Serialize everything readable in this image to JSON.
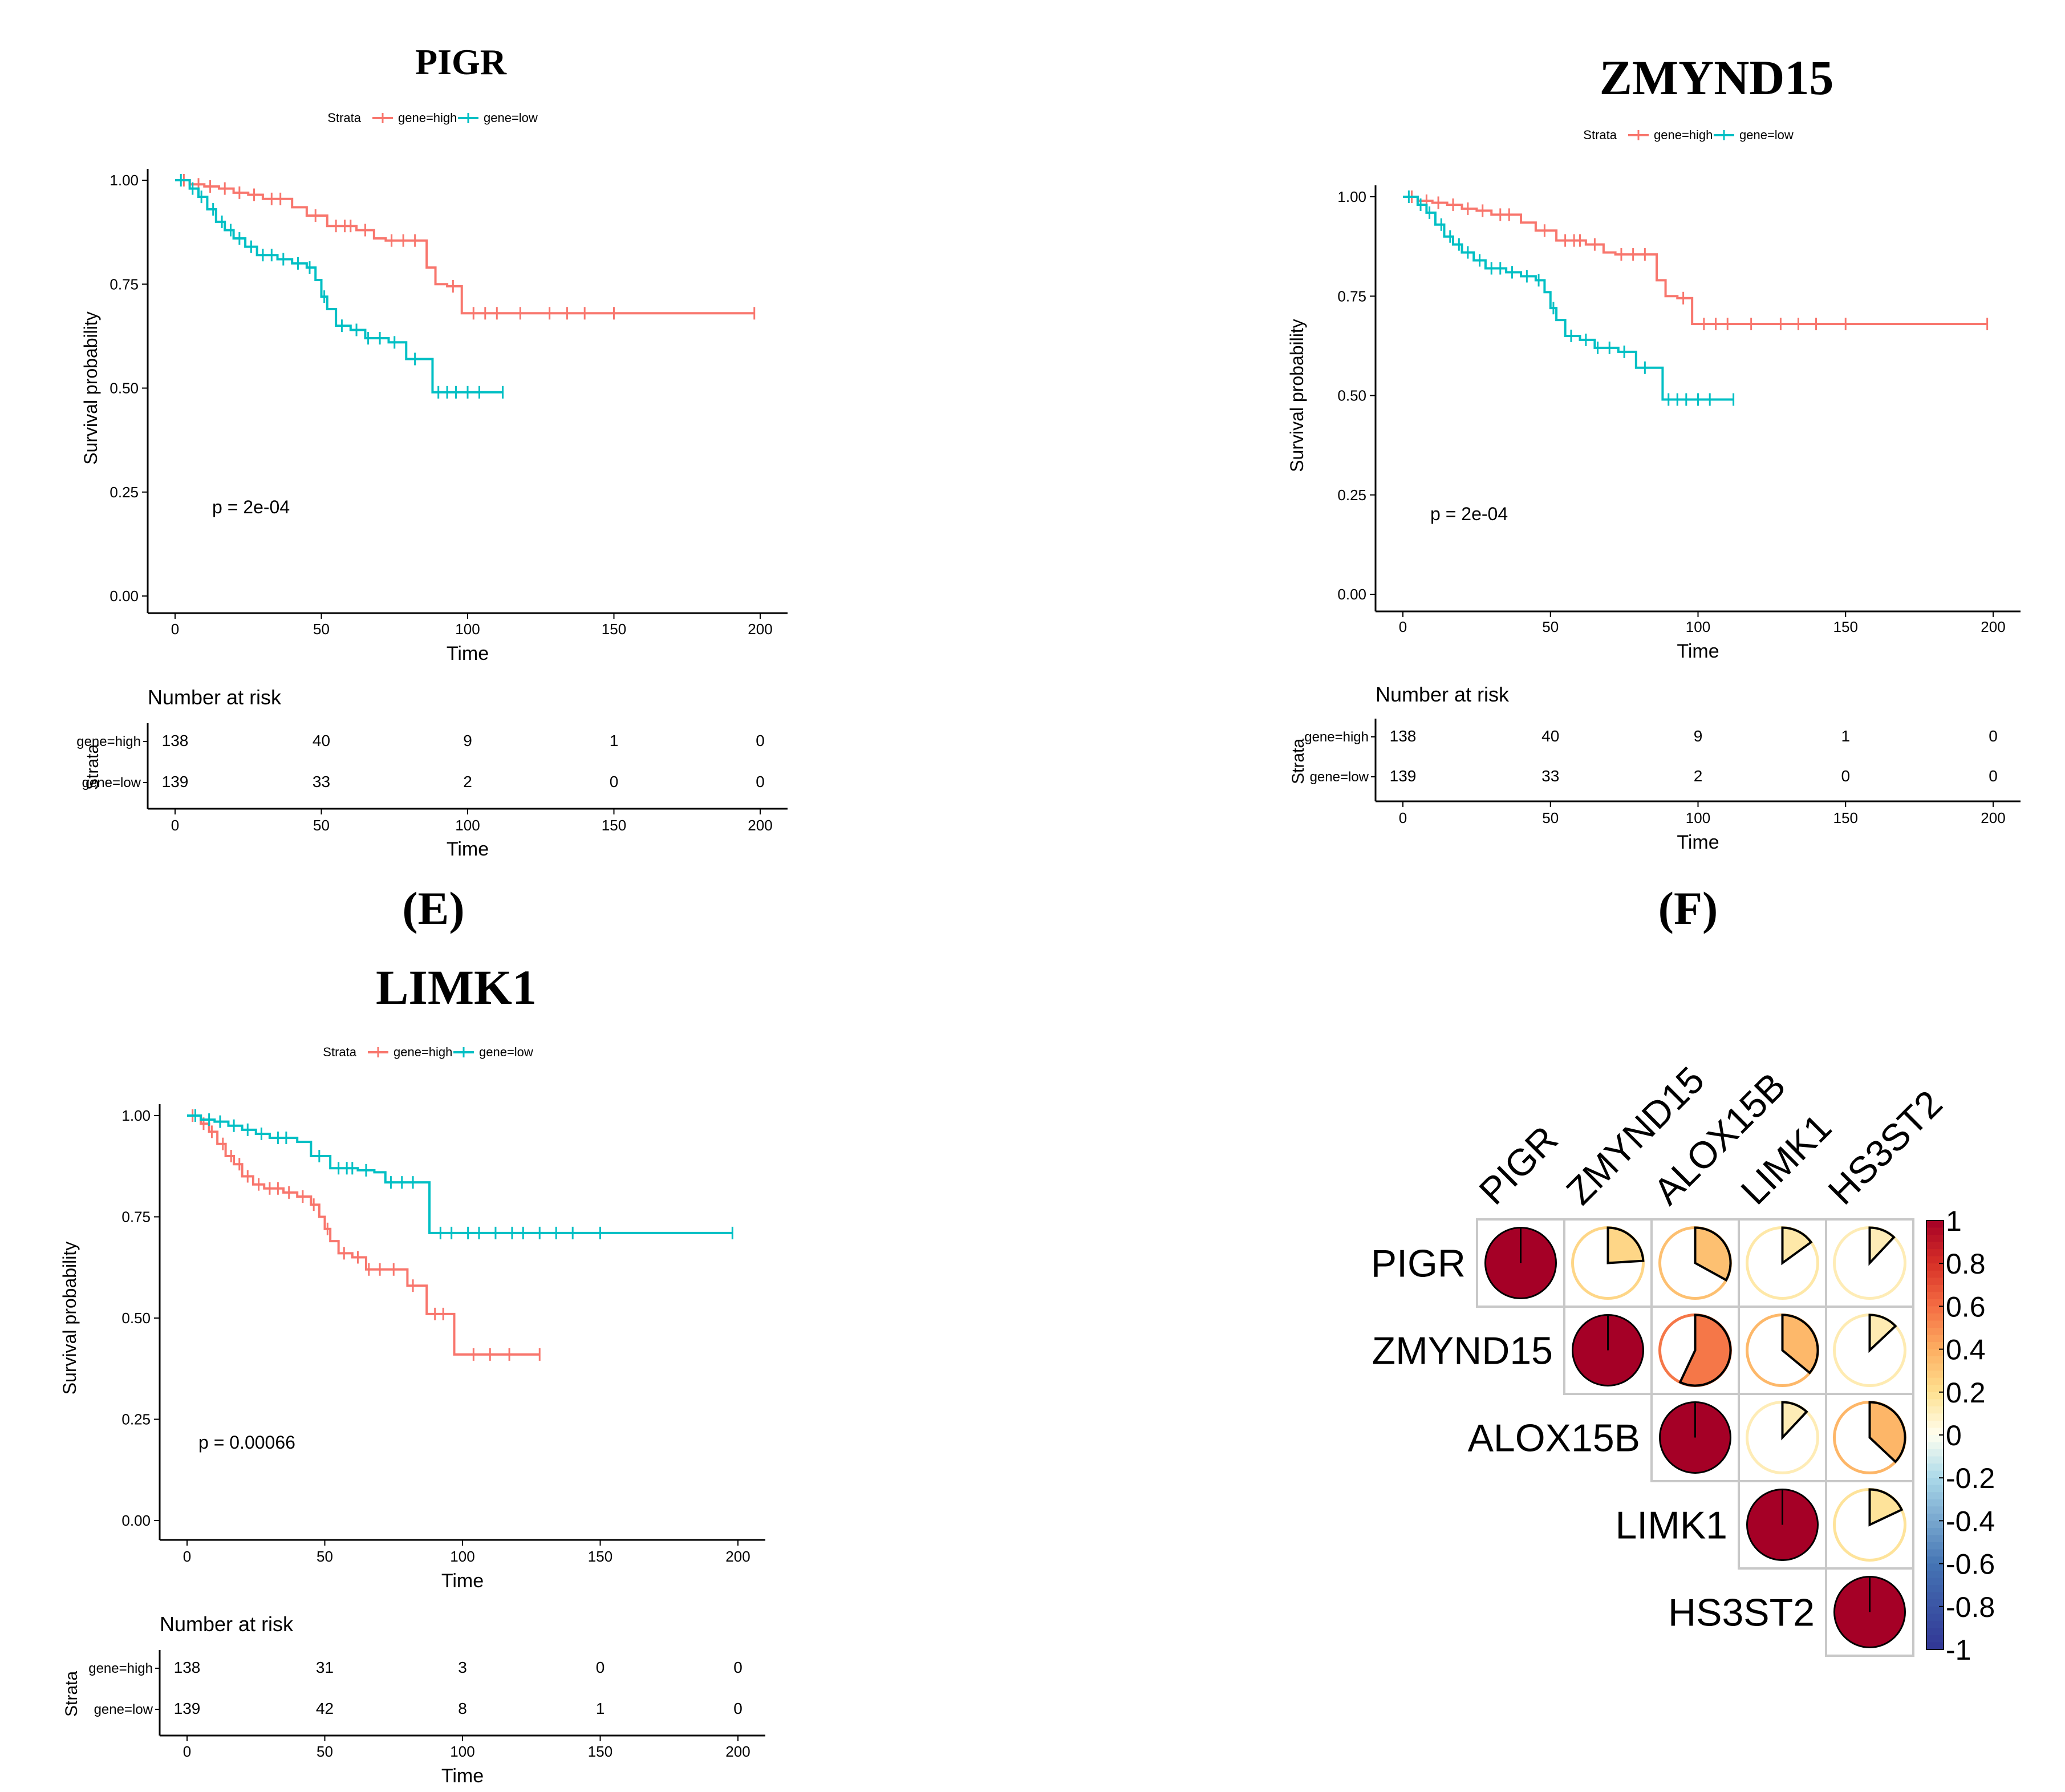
{
  "figure": {
    "panel_labels": [
      "(E)",
      "(F)"
    ]
  },
  "colors": {
    "high": "#F8766D",
    "low": "#00BFC4"
  },
  "chart_data": [
    {
      "type": "line",
      "subtype": "kaplan-meier",
      "title": "PIGR",
      "legend_title": "Strata",
      "legend_position": "top",
      "legend_entries": [
        "gene=high",
        "gene=low"
      ],
      "xlabel": "Time",
      "ylabel": "Survival probability",
      "xlim": [
        0,
        200
      ],
      "ylim": [
        0,
        1
      ],
      "x_ticks": [
        "0",
        "50",
        "100",
        "150",
        "200"
      ],
      "y_ticks": [
        "0.00",
        "0.25",
        "0.50",
        "0.75",
        "1.00"
      ],
      "pvalue": "p = 2e-04",
      "series": [
        {
          "name": "gene=high",
          "color": "#F8766D",
          "times": [
            0,
            5,
            10,
            15,
            20,
            25,
            30,
            40,
            45,
            52,
            62,
            68,
            72,
            86,
            89,
            93,
            98,
            198
          ],
          "surv": [
            1.0,
            0.99,
            0.985,
            0.98,
            0.97,
            0.965,
            0.955,
            0.935,
            0.915,
            0.89,
            0.88,
            0.86,
            0.855,
            0.79,
            0.75,
            0.745,
            0.68,
            0.68
          ],
          "censor": [
            3,
            8,
            12,
            17,
            22,
            27,
            33,
            36,
            48,
            55,
            58,
            60,
            65,
            74,
            78,
            82,
            95,
            102,
            106,
            110,
            118,
            128,
            134,
            140,
            150,
            198
          ]
        },
        {
          "name": "gene=low",
          "color": "#00BFC4",
          "times": [
            0,
            5,
            8,
            11,
            14,
            17,
            20,
            24,
            28,
            35,
            40,
            45,
            48,
            50,
            52,
            55,
            60,
            65,
            73,
            79,
            88,
            112
          ],
          "surv": [
            1.0,
            0.98,
            0.96,
            0.93,
            0.9,
            0.88,
            0.86,
            0.84,
            0.82,
            0.81,
            0.8,
            0.79,
            0.76,
            0.72,
            0.69,
            0.65,
            0.64,
            0.62,
            0.61,
            0.57,
            0.49,
            0.49
          ],
          "censor": [
            2,
            6,
            9,
            13,
            16,
            19,
            22,
            26,
            30,
            33,
            37,
            42,
            46,
            51,
            57,
            62,
            66,
            70,
            75,
            82,
            90,
            93,
            96,
            100,
            104,
            112
          ]
        }
      ],
      "risk_table": {
        "title": "Number at risk",
        "ylabel": "Strata",
        "xlabel": "Time",
        "rows": [
          {
            "label": "gene=high",
            "color": "#F8766D",
            "values": [
              "138",
              "40",
              "9",
              "1",
              "0"
            ]
          },
          {
            "label": "gene=low",
            "color": "#00BFC4",
            "values": [
              "139",
              "33",
              "2",
              "0",
              "0"
            ]
          }
        ]
      }
    },
    {
      "type": "line",
      "subtype": "kaplan-meier",
      "title": "ZMYND15",
      "legend_title": "Strata",
      "legend_position": "top",
      "legend_entries": [
        "gene=high",
        "gene=low"
      ],
      "xlabel": "Time",
      "ylabel": "Survival probability",
      "xlim": [
        0,
        200
      ],
      "ylim": [
        0,
        1
      ],
      "x_ticks": [
        "0",
        "50",
        "100",
        "150",
        "200"
      ],
      "y_ticks": [
        "0.00",
        "0.25",
        "0.50",
        "0.75",
        "1.00"
      ],
      "pvalue": "p = 2e-04",
      "series": [
        {
          "name": "gene=high",
          "color": "#F8766D",
          "times": [
            0,
            5,
            10,
            15,
            20,
            25,
            30,
            40,
            45,
            52,
            62,
            68,
            72,
            86,
            89,
            93,
            98,
            198
          ],
          "surv": [
            1.0,
            0.99,
            0.985,
            0.98,
            0.97,
            0.965,
            0.955,
            0.935,
            0.915,
            0.89,
            0.88,
            0.86,
            0.855,
            0.79,
            0.75,
            0.745,
            0.68,
            0.68
          ],
          "censor": [
            3,
            8,
            12,
            17,
            22,
            27,
            33,
            36,
            48,
            55,
            58,
            60,
            65,
            74,
            78,
            82,
            95,
            102,
            106,
            110,
            118,
            128,
            134,
            140,
            150,
            198
          ]
        },
        {
          "name": "gene=low",
          "color": "#00BFC4",
          "times": [
            0,
            5,
            8,
            11,
            14,
            17,
            20,
            24,
            28,
            35,
            40,
            45,
            48,
            50,
            52,
            55,
            60,
            65,
            73,
            79,
            88,
            112
          ],
          "surv": [
            1.0,
            0.98,
            0.96,
            0.93,
            0.9,
            0.88,
            0.86,
            0.84,
            0.82,
            0.81,
            0.8,
            0.79,
            0.76,
            0.72,
            0.69,
            0.65,
            0.64,
            0.62,
            0.61,
            0.57,
            0.49,
            0.49
          ],
          "censor": [
            2,
            6,
            9,
            13,
            16,
            19,
            22,
            26,
            30,
            33,
            37,
            42,
            46,
            51,
            57,
            62,
            66,
            70,
            75,
            82,
            90,
            93,
            96,
            100,
            104,
            112
          ]
        }
      ],
      "risk_table": {
        "title": "Number at risk",
        "ylabel": "Strata",
        "xlabel": "Time",
        "rows": [
          {
            "label": "gene=high",
            "color": "#F8766D",
            "values": [
              "138",
              "40",
              "9",
              "1",
              "0"
            ]
          },
          {
            "label": "gene=low",
            "color": "#00BFC4",
            "values": [
              "139",
              "33",
              "2",
              "0",
              "0"
            ]
          }
        ]
      }
    },
    {
      "type": "line",
      "subtype": "kaplan-meier",
      "title": "LIMK1",
      "legend_title": "Strata",
      "legend_position": "top",
      "legend_entries": [
        "gene=high",
        "gene=low"
      ],
      "xlabel": "Time",
      "ylabel": "Survival probability",
      "xlim": [
        0,
        200
      ],
      "ylim": [
        0,
        1
      ],
      "x_ticks": [
        "0",
        "50",
        "100",
        "150",
        "200"
      ],
      "y_ticks": [
        "0.00",
        "0.25",
        "0.50",
        "0.75",
        "1.00"
      ],
      "pvalue": "p = 0.00066",
      "series": [
        {
          "name": "gene=high",
          "color": "#F8766D",
          "times": [
            0,
            5,
            8,
            11,
            14,
            17,
            20,
            24,
            28,
            35,
            40,
            45,
            48,
            50,
            52,
            55,
            60,
            65,
            73,
            80,
            87,
            97,
            128
          ],
          "surv": [
            1.0,
            0.98,
            0.96,
            0.93,
            0.9,
            0.88,
            0.85,
            0.83,
            0.82,
            0.81,
            0.8,
            0.78,
            0.75,
            0.72,
            0.69,
            0.66,
            0.65,
            0.62,
            0.62,
            0.58,
            0.51,
            0.41,
            0.41
          ],
          "censor": [
            2,
            6,
            9,
            13,
            16,
            19,
            22,
            26,
            30,
            33,
            37,
            42,
            46,
            51,
            57,
            62,
            66,
            70,
            75,
            82,
            90,
            93,
            104,
            110,
            117,
            128
          ]
        },
        {
          "name": "gene=low",
          "color": "#00BFC4",
          "times": [
            0,
            5,
            10,
            15,
            20,
            25,
            30,
            40,
            45,
            52,
            62,
            68,
            72,
            86,
            88,
            198
          ],
          "surv": [
            1.0,
            0.99,
            0.985,
            0.975,
            0.965,
            0.955,
            0.945,
            0.935,
            0.9,
            0.87,
            0.865,
            0.86,
            0.835,
            0.835,
            0.71,
            0.71
          ],
          "censor": [
            3,
            8,
            12,
            17,
            22,
            27,
            33,
            36,
            48,
            55,
            58,
            60,
            65,
            74,
            78,
            82,
            92,
            96,
            102,
            106,
            112,
            118,
            122,
            128,
            134,
            140,
            150,
            198
          ]
        }
      ],
      "risk_table": {
        "title": "Number at risk",
        "ylabel": "Strata",
        "xlabel": "Time",
        "rows": [
          {
            "label": "gene=high",
            "color": "#F8766D",
            "values": [
              "138",
              "31",
              "3",
              "0",
              "0"
            ]
          },
          {
            "label": "gene=low",
            "color": "#00BFC4",
            "values": [
              "139",
              "42",
              "8",
              "1",
              "0"
            ]
          }
        ]
      }
    },
    {
      "type": "heatmap",
      "subtype": "correlation-pie-matrix",
      "variables": [
        "PIGR",
        "ZMYND15",
        "ALOX15B",
        "LIMK1",
        "HS3ST2"
      ],
      "matrix": [
        [
          1.0,
          0.24,
          0.33,
          0.15,
          0.12
        ],
        [
          null,
          1.0,
          0.57,
          0.36,
          0.13
        ],
        [
          null,
          null,
          1.0,
          0.12,
          0.37
        ],
        [
          null,
          null,
          null,
          1.0,
          0.18
        ],
        [
          null,
          null,
          null,
          null,
          1.0
        ]
      ],
      "colorbar_ticks": [
        "1",
        "0.8",
        "0.6",
        "0.4",
        "0.2",
        "0",
        "-0.2",
        "-0.4",
        "-0.6",
        "-0.8",
        "-1"
      ],
      "color_range": [
        -1,
        1
      ]
    }
  ]
}
